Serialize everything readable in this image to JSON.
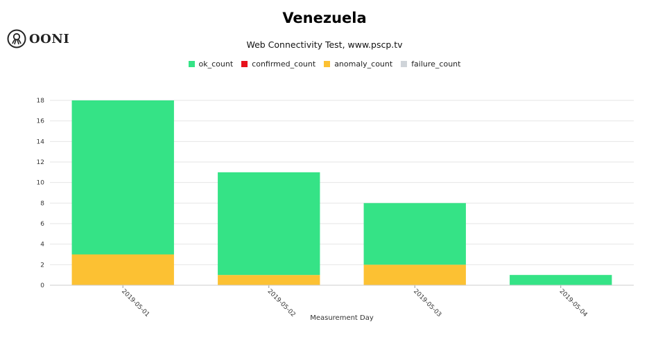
{
  "brand": {
    "logo_text": "OONI"
  },
  "chart_data": {
    "type": "bar",
    "stacked": true,
    "title": "Venezuela",
    "subtitle": "Web Connectivity Test, www.pscp.tv",
    "xlabel": "Measurement Day",
    "ylabel": "",
    "categories": [
      "2019-05-01",
      "2019-05-02",
      "2019-05-03",
      "2019-05-04"
    ],
    "ylim": [
      0,
      18
    ],
    "yticks": [
      "0",
      "2",
      "4",
      "6",
      "8",
      "10",
      "12",
      "14",
      "16",
      "18"
    ],
    "grid": true,
    "legend_position": "top-center",
    "series": [
      {
        "name": "ok_count",
        "color": "#35e386",
        "values": [
          15,
          10,
          6,
          1
        ]
      },
      {
        "name": "confirmed_count",
        "color": "#e8111b",
        "values": [
          0,
          0,
          0,
          0
        ]
      },
      {
        "name": "anomaly_count",
        "color": "#fcc133",
        "values": [
          3,
          1,
          2,
          0
        ]
      },
      {
        "name": "failure_count",
        "color": "#cfd4d9",
        "values": [
          0,
          0,
          0,
          0
        ]
      }
    ],
    "stack_order": [
      "anomaly_count",
      "failure_count",
      "confirmed_count",
      "ok_count"
    ]
  }
}
